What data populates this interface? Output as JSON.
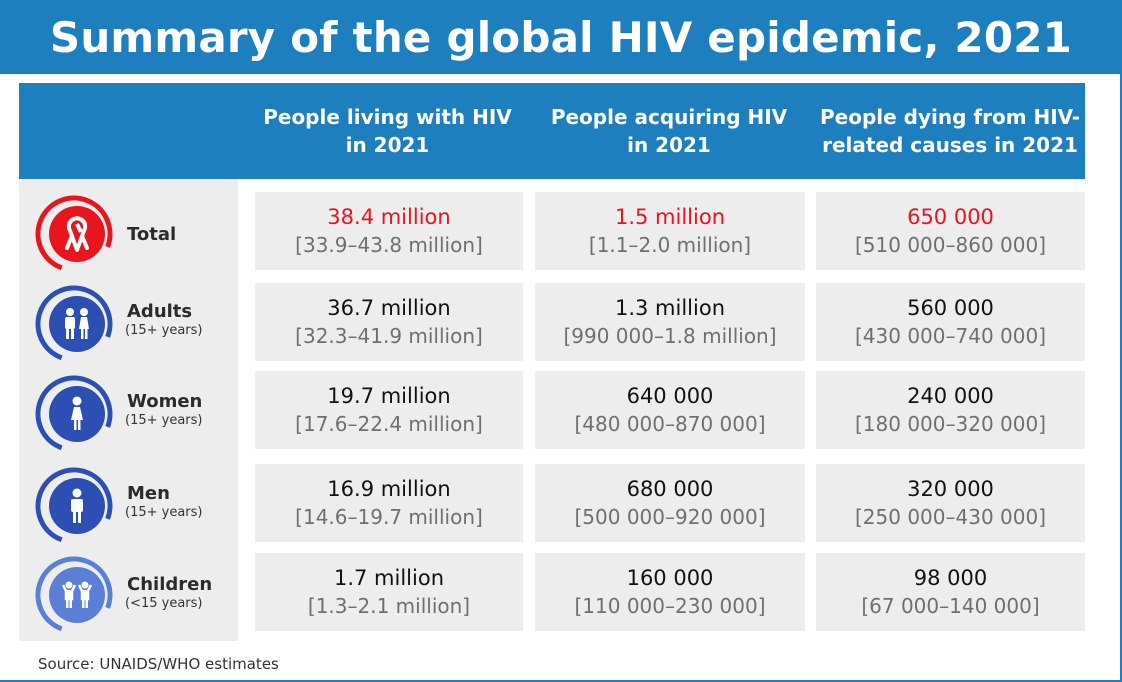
{
  "title": "Summary of the global HIV epidemic, 2021",
  "columns": [
    {
      "line1": "People living with HIV",
      "line2": "in 2021"
    },
    {
      "line1": "People acquiring HIV",
      "line2": "in 2021"
    },
    {
      "line1": "People dying from HIV-",
      "line2": "related causes in 2021"
    }
  ],
  "rows": [
    {
      "label": "Total",
      "sub": "",
      "icon": "ribbon-icon",
      "color": "#e8151e",
      "cells": [
        {
          "value": "38.4 million",
          "range": "[33.9–43.8 million]"
        },
        {
          "value": "1.5 million",
          "range": "[1.1–2.0 million]"
        },
        {
          "value": "650 000",
          "range": "[510 000–860 000]"
        }
      ]
    },
    {
      "label": "Adults",
      "sub": "(15+ years)",
      "icon": "adults-icon",
      "color": "#2d4fb3",
      "cells": [
        {
          "value": "36.7 million",
          "range": "[32.3–41.9 million]"
        },
        {
          "value": "1.3 million",
          "range": "[990 000–1.8 million]"
        },
        {
          "value": "560 000",
          "range": "[430 000–740 000]"
        }
      ]
    },
    {
      "label": "Women",
      "sub": "(15+ years)",
      "icon": "woman-icon",
      "color": "#2d4fb3",
      "cells": [
        {
          "value": "19.7 million",
          "range": "[17.6–22.4 million]"
        },
        {
          "value": "640 000",
          "range": "[480 000–870 000]"
        },
        {
          "value": "240 000",
          "range": "[180 000–320 000]"
        }
      ]
    },
    {
      "label": "Men",
      "sub": "(15+ years)",
      "icon": "man-icon",
      "color": "#2d4fb3",
      "cells": [
        {
          "value": "16.9 million",
          "range": "[14.6–19.7 million]"
        },
        {
          "value": "680 000",
          "range": "[500 000–920 000]"
        },
        {
          "value": "320 000",
          "range": "[250 000–430 000]"
        }
      ]
    },
    {
      "label": "Children",
      "sub": "(<15 years)",
      "icon": "children-icon",
      "color": "#5b7fd6",
      "cells": [
        {
          "value": "1.7 million",
          "range": "[1.3–2.1 million]"
        },
        {
          "value": "160 000",
          "range": "[110 000–230 000]"
        },
        {
          "value": "98 000",
          "range": "[67 000–140 000]"
        }
      ]
    }
  ],
  "source": "Source: UNAIDS/WHO estimates",
  "colors": {
    "brand": "#1e7fbf",
    "highlight": "#e8151e",
    "cell_bg": "#eeeded"
  }
}
